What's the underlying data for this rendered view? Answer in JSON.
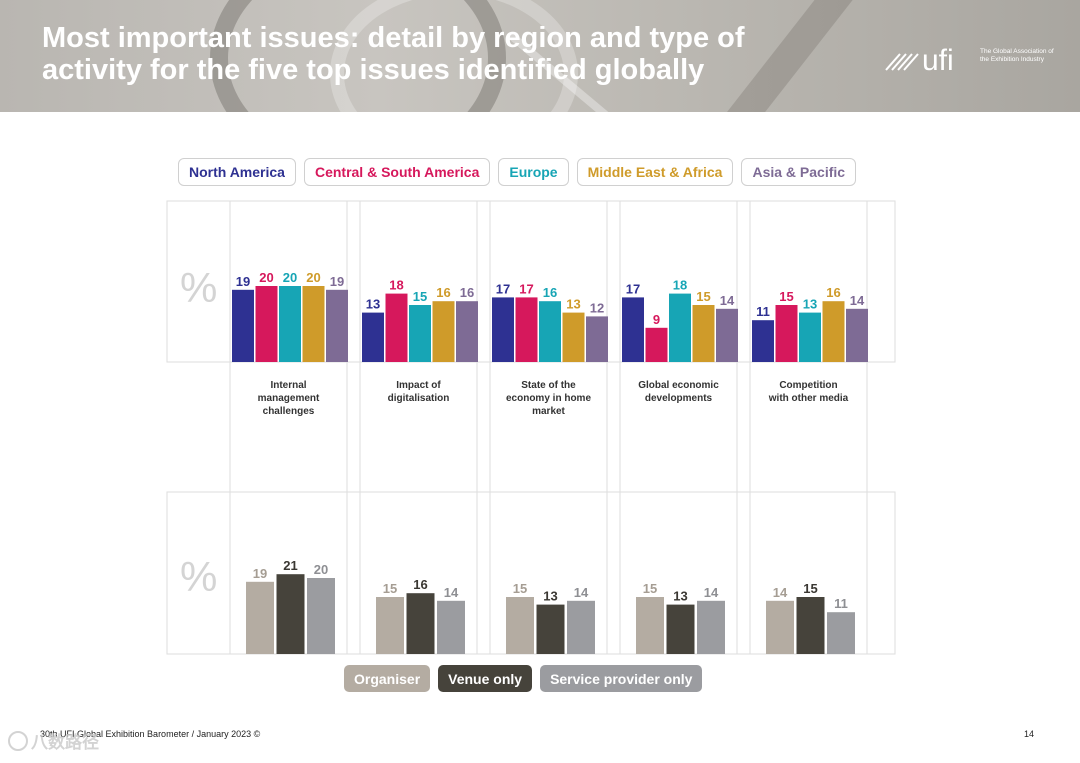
{
  "title": "Most important issues: detail by region and type of activity for the five top issues identified globally",
  "logo": {
    "mark": "ufi",
    "tagline": "The Global Association of the Exhibition Industry"
  },
  "footer": "30th UFI Global Exhibition Barometer / January 2023 ©",
  "page_number": "14",
  "watermark": "八数路径",
  "chart_data": [
    {
      "type": "bar",
      "name": "by-region",
      "axis_symbol": "%",
      "categories": [
        "Internal management challenges",
        "Impact of digitalisation",
        "State of the economy in home market",
        "Global economic developments",
        "Competition with other media"
      ],
      "category_lines": [
        [
          "Internal",
          "management",
          "challenges"
        ],
        [
          "Impact of",
          "digitalisation"
        ],
        [
          "State of the",
          "economy in home",
          "market"
        ],
        [
          "Global economic",
          "developments"
        ],
        [
          "Competition",
          "with other media"
        ]
      ],
      "series": [
        {
          "name": "North America",
          "color": "#2e3192",
          "values": [
            19,
            13,
            17,
            17,
            11
          ]
        },
        {
          "name": "Central & South America",
          "color": "#d6185c",
          "values": [
            20,
            18,
            17,
            9,
            15
          ]
        },
        {
          "name": "Europe",
          "color": "#17a5b5",
          "values": [
            20,
            15,
            16,
            18,
            13
          ]
        },
        {
          "name": "Middle East & Africa",
          "color": "#cf9b2a",
          "values": [
            20,
            16,
            13,
            15,
            16
          ]
        },
        {
          "name": "Asia & Pacific",
          "color": "#7e6b95",
          "values": [
            19,
            16,
            12,
            14,
            14
          ]
        }
      ],
      "ylim": [
        0,
        30
      ]
    },
    {
      "type": "bar",
      "name": "by-activity",
      "axis_symbol": "%",
      "categories": [
        "Internal management challenges",
        "Impact of digitalisation",
        "State of the economy in home market",
        "Global economic developments",
        "Competition with other media"
      ],
      "series": [
        {
          "name": "Organiser",
          "color": "#b4aca2",
          "label_color": "#a59d93",
          "values": [
            19,
            15,
            15,
            15,
            14
          ]
        },
        {
          "name": "Venue only",
          "color": "#46433b",
          "label_color": "#3a3732",
          "values": [
            21,
            16,
            13,
            13,
            15
          ]
        },
        {
          "name": "Service provider only",
          "color": "#9b9ca0",
          "label_color": "#8e8f93",
          "values": [
            20,
            14,
            14,
            14,
            11
          ]
        }
      ],
      "ylim": [
        0,
        30
      ]
    }
  ]
}
